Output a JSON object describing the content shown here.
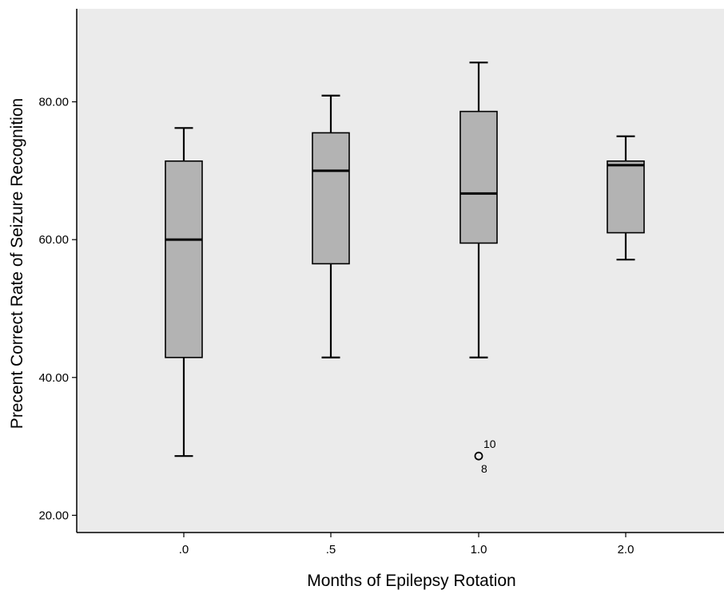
{
  "chart_data": {
    "type": "boxplot",
    "title": "",
    "xlabel": "Months of Epilepsy Rotation",
    "ylabel": "Precent Correct Rate of Seizure Recognition",
    "ylim": [
      17.5,
      93.5
    ],
    "yticks": [
      20,
      40,
      60,
      80
    ],
    "ytick_labels": [
      "20.00",
      "40.00",
      "60.00",
      "80.00"
    ],
    "grid": false,
    "categories": [
      ".0",
      ".5",
      "1.0",
      "2.0"
    ],
    "boxes": [
      {
        "category": ".0",
        "whisker_low": 28.6,
        "q1": 42.9,
        "median": 60.0,
        "q3": 71.4,
        "whisker_high": 76.2,
        "outliers": []
      },
      {
        "category": ".5",
        "whisker_low": 42.9,
        "q1": 56.5,
        "median": 70.0,
        "q3": 75.5,
        "whisker_high": 80.9,
        "outliers": []
      },
      {
        "category": "1.0",
        "whisker_low": 42.9,
        "q1": 59.5,
        "median": 66.7,
        "q3": 78.6,
        "whisker_high": 85.7,
        "outliers": [
          {
            "value": 28.6,
            "labels": [
              "10",
              "8"
            ]
          }
        ]
      },
      {
        "category": "2.0",
        "whisker_low": 57.1,
        "q1": 61.0,
        "median": 70.8,
        "q3": 71.4,
        "whisker_high": 75.0,
        "outliers": []
      }
    ],
    "colors": {
      "plot_background": "#ebebeb",
      "box_fill": "#b3b3b3",
      "line": "#000000"
    }
  }
}
